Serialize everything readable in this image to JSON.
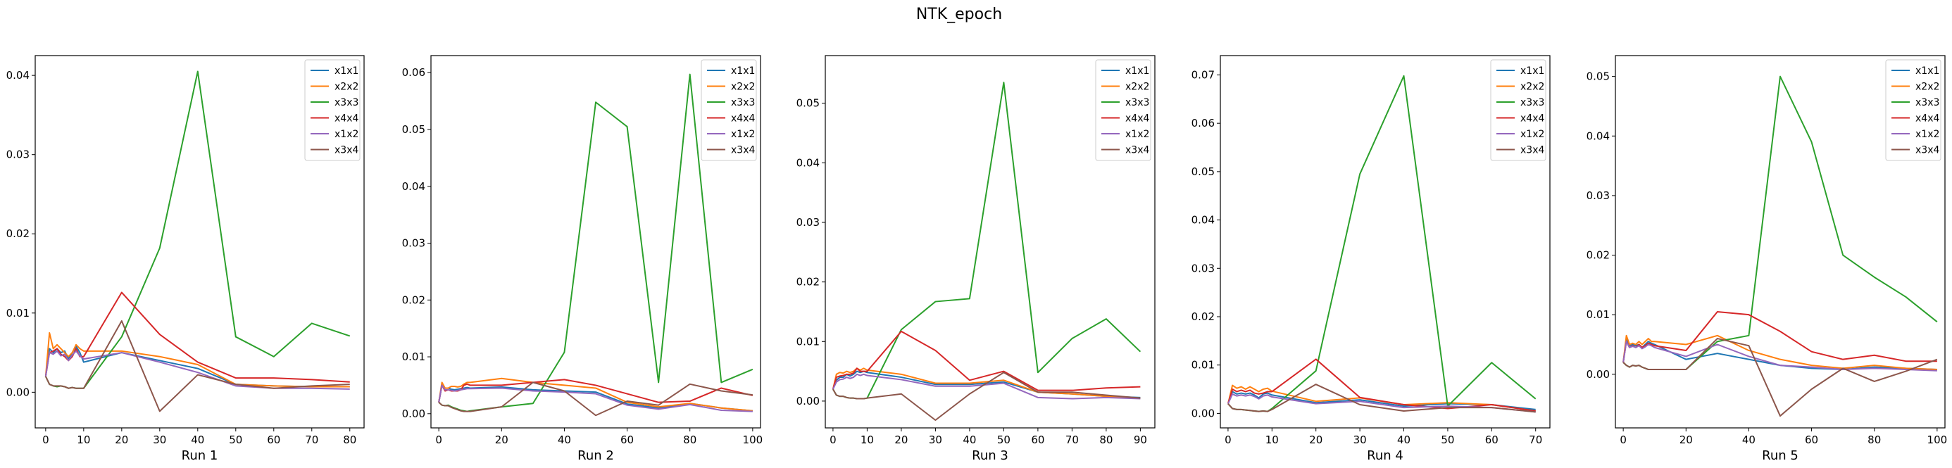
{
  "figure": {
    "title": "NTK_epoch"
  },
  "legend_position": "top-right",
  "series_colors": {
    "x1x1": "#1f77b4",
    "x2x2": "#ff7f0e",
    "x3x3": "#2ca02c",
    "x4x4": "#d62728",
    "x1x2": "#9467bd",
    "x3x4": "#8c564b"
  },
  "chart_data": [
    {
      "type": "line",
      "xlabel": "Run 1",
      "ylabel": "",
      "xlim": [
        -2.75,
        83.75
      ],
      "ylim": [
        -0.0045,
        0.0425
      ],
      "xticks": [
        0,
        10,
        20,
        30,
        40,
        50,
        60,
        70,
        80
      ],
      "yticks": [
        0.0,
        0.01,
        0.02,
        0.03,
        0.04
      ],
      "x": [
        0,
        1,
        2,
        3,
        4,
        5,
        6,
        7,
        8,
        9,
        10,
        20,
        30,
        40,
        50,
        60,
        70,
        80
      ],
      "series": [
        {
          "name": "x1x1",
          "values": [
            0.002,
            0.0055,
            0.005,
            0.0055,
            0.005,
            0.0052,
            0.0042,
            0.005,
            0.0058,
            0.005,
            0.0038,
            0.005,
            0.004,
            0.003,
            0.001,
            0.0008,
            0.0007,
            0.0007
          ]
        },
        {
          "name": "x2x2",
          "values": [
            0.002,
            0.0075,
            0.0055,
            0.006,
            0.0055,
            0.005,
            0.0045,
            0.005,
            0.006,
            0.0055,
            0.0052,
            0.0052,
            0.0045,
            0.0035,
            0.001,
            0.0008,
            0.0007,
            0.0007
          ]
        },
        {
          "name": "x3x3",
          "values": [
            0.002,
            0.001,
            0.0008,
            0.0007,
            0.0008,
            0.0007,
            0.0005,
            0.0006,
            0.0005,
            0.0005,
            0.0005,
            0.007,
            0.0182,
            0.0405,
            0.007,
            0.0045,
            0.0087,
            0.0071
          ]
        },
        {
          "name": "x4x4",
          "values": [
            0.002,
            0.005,
            0.0052,
            0.0055,
            0.0048,
            0.0045,
            0.004,
            0.0045,
            0.0055,
            0.0045,
            0.0045,
            0.0126,
            0.0073,
            0.0038,
            0.0018,
            0.0018,
            0.0016,
            0.0013
          ]
        },
        {
          "name": "x1x2",
          "values": [
            0.002,
            0.005,
            0.0048,
            0.0052,
            0.0046,
            0.0048,
            0.004,
            0.0047,
            0.0052,
            0.0046,
            0.0042,
            0.005,
            0.0038,
            0.0025,
            0.0008,
            0.0005,
            0.0005,
            0.0004
          ]
        },
        {
          "name": "x3x4",
          "values": [
            0.002,
            0.001,
            0.0008,
            0.0008,
            0.0008,
            0.0007,
            0.0005,
            0.0006,
            0.0005,
            0.0005,
            0.0005,
            0.009,
            -0.0024,
            0.0022,
            0.001,
            0.0005,
            0.0008,
            0.001
          ]
        }
      ]
    },
    {
      "type": "line",
      "xlabel": "Run 2",
      "ylabel": "",
      "xlim": [
        -2.5,
        102.5
      ],
      "ylim": [
        -0.0025,
        0.063
      ],
      "xticks": [
        0,
        20,
        40,
        60,
        80,
        100
      ],
      "yticks": [
        0.0,
        0.01,
        0.02,
        0.03,
        0.04,
        0.05,
        0.06
      ],
      "x": [
        0,
        1,
        2,
        3,
        4,
        5,
        6,
        7,
        8,
        9,
        10,
        20,
        30,
        40,
        50,
        60,
        70,
        80,
        90,
        100
      ],
      "series": [
        {
          "name": "x1x1",
          "values": [
            0.002,
            0.005,
            0.0045,
            0.0045,
            0.0043,
            0.0042,
            0.0043,
            0.0044,
            0.0045,
            0.0046,
            0.0045,
            0.0047,
            0.0042,
            0.004,
            0.0038,
            0.0017,
            0.001,
            0.0018,
            0.001,
            0.0005
          ]
        },
        {
          "name": "x2x2",
          "values": [
            0.002,
            0.0055,
            0.0045,
            0.0045,
            0.0048,
            0.0048,
            0.0047,
            0.0048,
            0.0052,
            0.0055,
            0.0055,
            0.0062,
            0.0055,
            0.005,
            0.0045,
            0.002,
            0.0012,
            0.0018,
            0.001,
            0.0005
          ]
        },
        {
          "name": "x3x3",
          "values": [
            0.002,
            0.0015,
            0.0014,
            0.0015,
            0.0012,
            0.001,
            0.0008,
            0.0006,
            0.0005,
            0.0004,
            0.0005,
            0.0012,
            0.0018,
            0.0108,
            0.0548,
            0.0505,
            0.0055,
            0.0597,
            0.0055,
            0.0078
          ]
        },
        {
          "name": "x4x4",
          "values": [
            0.002,
            0.005,
            0.004,
            0.0042,
            0.004,
            0.004,
            0.004,
            0.0042,
            0.005,
            0.0052,
            0.005,
            0.005,
            0.0055,
            0.006,
            0.005,
            0.0035,
            0.002,
            0.0022,
            0.0045,
            0.0032
          ]
        },
        {
          "name": "x1x2",
          "values": [
            0.002,
            0.005,
            0.0042,
            0.0042,
            0.0041,
            0.004,
            0.0041,
            0.0042,
            0.0043,
            0.0044,
            0.0044,
            0.0045,
            0.004,
            0.0038,
            0.0035,
            0.0015,
            0.0008,
            0.0016,
            0.0006,
            0.0004
          ]
        },
        {
          "name": "x3x4",
          "values": [
            0.002,
            0.0015,
            0.0014,
            0.0014,
            0.0011,
            0.0009,
            0.0007,
            0.0005,
            0.0004,
            0.0004,
            0.0004,
            0.0012,
            0.0055,
            0.004,
            -0.0003,
            0.0022,
            0.0015,
            0.0052,
            0.004,
            0.0033
          ]
        }
      ]
    },
    {
      "type": "line",
      "xlabel": "Run 3",
      "ylabel": "",
      "xlim": [
        -2.25,
        94.25
      ],
      "ylim": [
        -0.0045,
        0.058
      ],
      "xticks": [
        0,
        10,
        20,
        30,
        40,
        50,
        60,
        70,
        80,
        90
      ],
      "yticks": [
        0.0,
        0.01,
        0.02,
        0.03,
        0.04,
        0.05
      ],
      "x": [
        0,
        1,
        2,
        3,
        4,
        5,
        6,
        7,
        8,
        9,
        10,
        20,
        30,
        40,
        50,
        60,
        70,
        80,
        90
      ],
      "series": [
        {
          "name": "x1x1",
          "values": [
            0.002,
            0.0035,
            0.004,
            0.004,
            0.0045,
            0.0042,
            0.0045,
            0.005,
            0.0048,
            0.005,
            0.0048,
            0.004,
            0.0028,
            0.0028,
            0.0032,
            0.0015,
            0.0012,
            0.0008,
            0.0006
          ]
        },
        {
          "name": "x2x2",
          "values": [
            0.002,
            0.0045,
            0.0048,
            0.0047,
            0.005,
            0.0048,
            0.005,
            0.0055,
            0.0052,
            0.0055,
            0.0052,
            0.0045,
            0.003,
            0.003,
            0.0035,
            0.0015,
            0.0012,
            0.0008,
            0.0005
          ]
        },
        {
          "name": "x3x3",
          "values": [
            0.002,
            0.001,
            0.0008,
            0.0008,
            0.0006,
            0.0005,
            0.0005,
            0.0004,
            0.0004,
            0.0004,
            0.0005,
            0.012,
            0.0167,
            0.0172,
            0.0535,
            0.0048,
            0.0105,
            0.0138,
            0.0083
          ]
        },
        {
          "name": "x4x4",
          "values": [
            0.002,
            0.004,
            0.0042,
            0.0043,
            0.0045,
            0.0045,
            0.0047,
            0.0055,
            0.005,
            0.005,
            0.005,
            0.0117,
            0.0085,
            0.0035,
            0.005,
            0.0018,
            0.0018,
            0.0022,
            0.0024
          ]
        },
        {
          "name": "x1x2",
          "values": [
            0.002,
            0.0032,
            0.0036,
            0.0037,
            0.004,
            0.0038,
            0.004,
            0.0045,
            0.0043,
            0.0045,
            0.0043,
            0.0036,
            0.0025,
            0.0025,
            0.003,
            0.0006,
            0.0004,
            0.0006,
            0.0004
          ]
        },
        {
          "name": "x3x4",
          "values": [
            0.002,
            0.001,
            0.0008,
            0.0008,
            0.0006,
            0.0005,
            0.0005,
            0.0004,
            0.0004,
            0.0004,
            0.0005,
            0.0012,
            -0.0032,
            0.0012,
            0.0048,
            0.0015,
            0.0015,
            0.001,
            0.0005
          ]
        }
      ]
    },
    {
      "type": "line",
      "xlabel": "Run 4",
      "ylabel": "",
      "xlim": [
        -1.75,
        73.25
      ],
      "ylim": [
        -0.003,
        0.074
      ],
      "xticks": [
        0,
        10,
        20,
        30,
        40,
        50,
        60,
        70
      ],
      "yticks": [
        0.0,
        0.01,
        0.02,
        0.03,
        0.04,
        0.05,
        0.06,
        0.07
      ],
      "x": [
        0,
        1,
        2,
        3,
        4,
        5,
        6,
        7,
        8,
        9,
        10,
        20,
        30,
        40,
        50,
        60,
        70
      ],
      "series": [
        {
          "name": "x1x1",
          "values": [
            0.002,
            0.0045,
            0.004,
            0.0042,
            0.004,
            0.0042,
            0.0038,
            0.0032,
            0.004,
            0.0042,
            0.0038,
            0.0022,
            0.0028,
            0.0015,
            0.002,
            0.0018,
            0.0008
          ]
        },
        {
          "name": "x2x2",
          "values": [
            0.002,
            0.0058,
            0.0052,
            0.0055,
            0.005,
            0.0055,
            0.005,
            0.0045,
            0.005,
            0.0052,
            0.0046,
            0.0025,
            0.0032,
            0.0018,
            0.0022,
            0.0018,
            0.0005
          ]
        },
        {
          "name": "x3x3",
          "values": [
            0.002,
            0.001,
            0.0008,
            0.0008,
            0.0007,
            0.0006,
            0.0005,
            0.0004,
            0.0005,
            0.0004,
            0.001,
            0.0088,
            0.0495,
            0.0698,
            0.0015,
            0.0105,
            0.003
          ]
        },
        {
          "name": "x4x4",
          "values": [
            0.002,
            0.005,
            0.0045,
            0.0048,
            0.0045,
            0.0048,
            0.0042,
            0.004,
            0.0042,
            0.0045,
            0.0045,
            0.0112,
            0.0033,
            0.0018,
            0.001,
            0.0018,
            0.0005
          ]
        },
        {
          "name": "x1x2",
          "values": [
            0.002,
            0.004,
            0.0036,
            0.0038,
            0.0036,
            0.0038,
            0.0035,
            0.003,
            0.0036,
            0.0038,
            0.0034,
            0.002,
            0.0025,
            0.0012,
            0.0015,
            0.0012,
            0.0003
          ]
        },
        {
          "name": "x3x4",
          "values": [
            0.002,
            0.001,
            0.0008,
            0.0008,
            0.0007,
            0.0006,
            0.0005,
            0.0004,
            0.0005,
            0.0004,
            0.0008,
            0.006,
            0.0018,
            0.0005,
            0.0012,
            0.0012,
            0.0003
          ]
        }
      ]
    },
    {
      "type": "line",
      "xlabel": "Run 5",
      "ylabel": "",
      "xlim": [
        -2.5,
        102.5
      ],
      "ylim": [
        -0.009,
        0.0535
      ],
      "xticks": [
        0,
        20,
        40,
        60,
        80,
        100
      ],
      "yticks": [
        0.0,
        0.01,
        0.02,
        0.03,
        0.04,
        0.05
      ],
      "x": [
        0,
        1,
        2,
        3,
        4,
        5,
        6,
        7,
        8,
        9,
        10,
        20,
        30,
        40,
        50,
        60,
        70,
        80,
        90,
        100
      ],
      "series": [
        {
          "name": "x1x1",
          "values": [
            0.002,
            0.006,
            0.0048,
            0.005,
            0.0048,
            0.005,
            0.0045,
            0.005,
            0.0055,
            0.0052,
            0.005,
            0.0025,
            0.0035,
            0.0025,
            0.0015,
            0.001,
            0.0008,
            0.0012,
            0.001,
            0.0008
          ]
        },
        {
          "name": "x2x2",
          "values": [
            0.002,
            0.0065,
            0.005,
            0.0052,
            0.005,
            0.0055,
            0.005,
            0.0055,
            0.006,
            0.0055,
            0.0055,
            0.005,
            0.0065,
            0.004,
            0.0025,
            0.0015,
            0.001,
            0.0015,
            0.001,
            0.0008
          ]
        },
        {
          "name": "x3x3",
          "values": [
            0.002,
            0.0015,
            0.0012,
            0.0015,
            0.0014,
            0.0015,
            0.0012,
            0.001,
            0.0008,
            0.0008,
            0.0008,
            0.0008,
            0.0055,
            0.0065,
            0.05,
            0.039,
            0.02,
            0.0163,
            0.013,
            0.0088
          ]
        },
        {
          "name": "x4x4",
          "values": [
            0.002,
            0.0055,
            0.0045,
            0.0048,
            0.0045,
            0.005,
            0.0045,
            0.0048,
            0.0052,
            0.005,
            0.0048,
            0.004,
            0.0105,
            0.01,
            0.0072,
            0.0038,
            0.0025,
            0.0032,
            0.0022,
            0.0022
          ]
        },
        {
          "name": "x1x2",
          "values": [
            0.002,
            0.0055,
            0.0045,
            0.0047,
            0.0045,
            0.0048,
            0.0043,
            0.0046,
            0.005,
            0.0048,
            0.0045,
            0.003,
            0.005,
            0.003,
            0.0015,
            0.0012,
            0.0008,
            0.001,
            0.0008,
            0.0006
          ]
        },
        {
          "name": "x3x4",
          "values": [
            0.002,
            0.0015,
            0.0012,
            0.0015,
            0.0014,
            0.0015,
            0.0012,
            0.001,
            0.0008,
            0.0008,
            0.0008,
            0.0008,
            0.006,
            0.0048,
            -0.007,
            -0.0025,
            0.001,
            -0.0012,
            0.0005,
            0.0025
          ]
        }
      ]
    }
  ]
}
